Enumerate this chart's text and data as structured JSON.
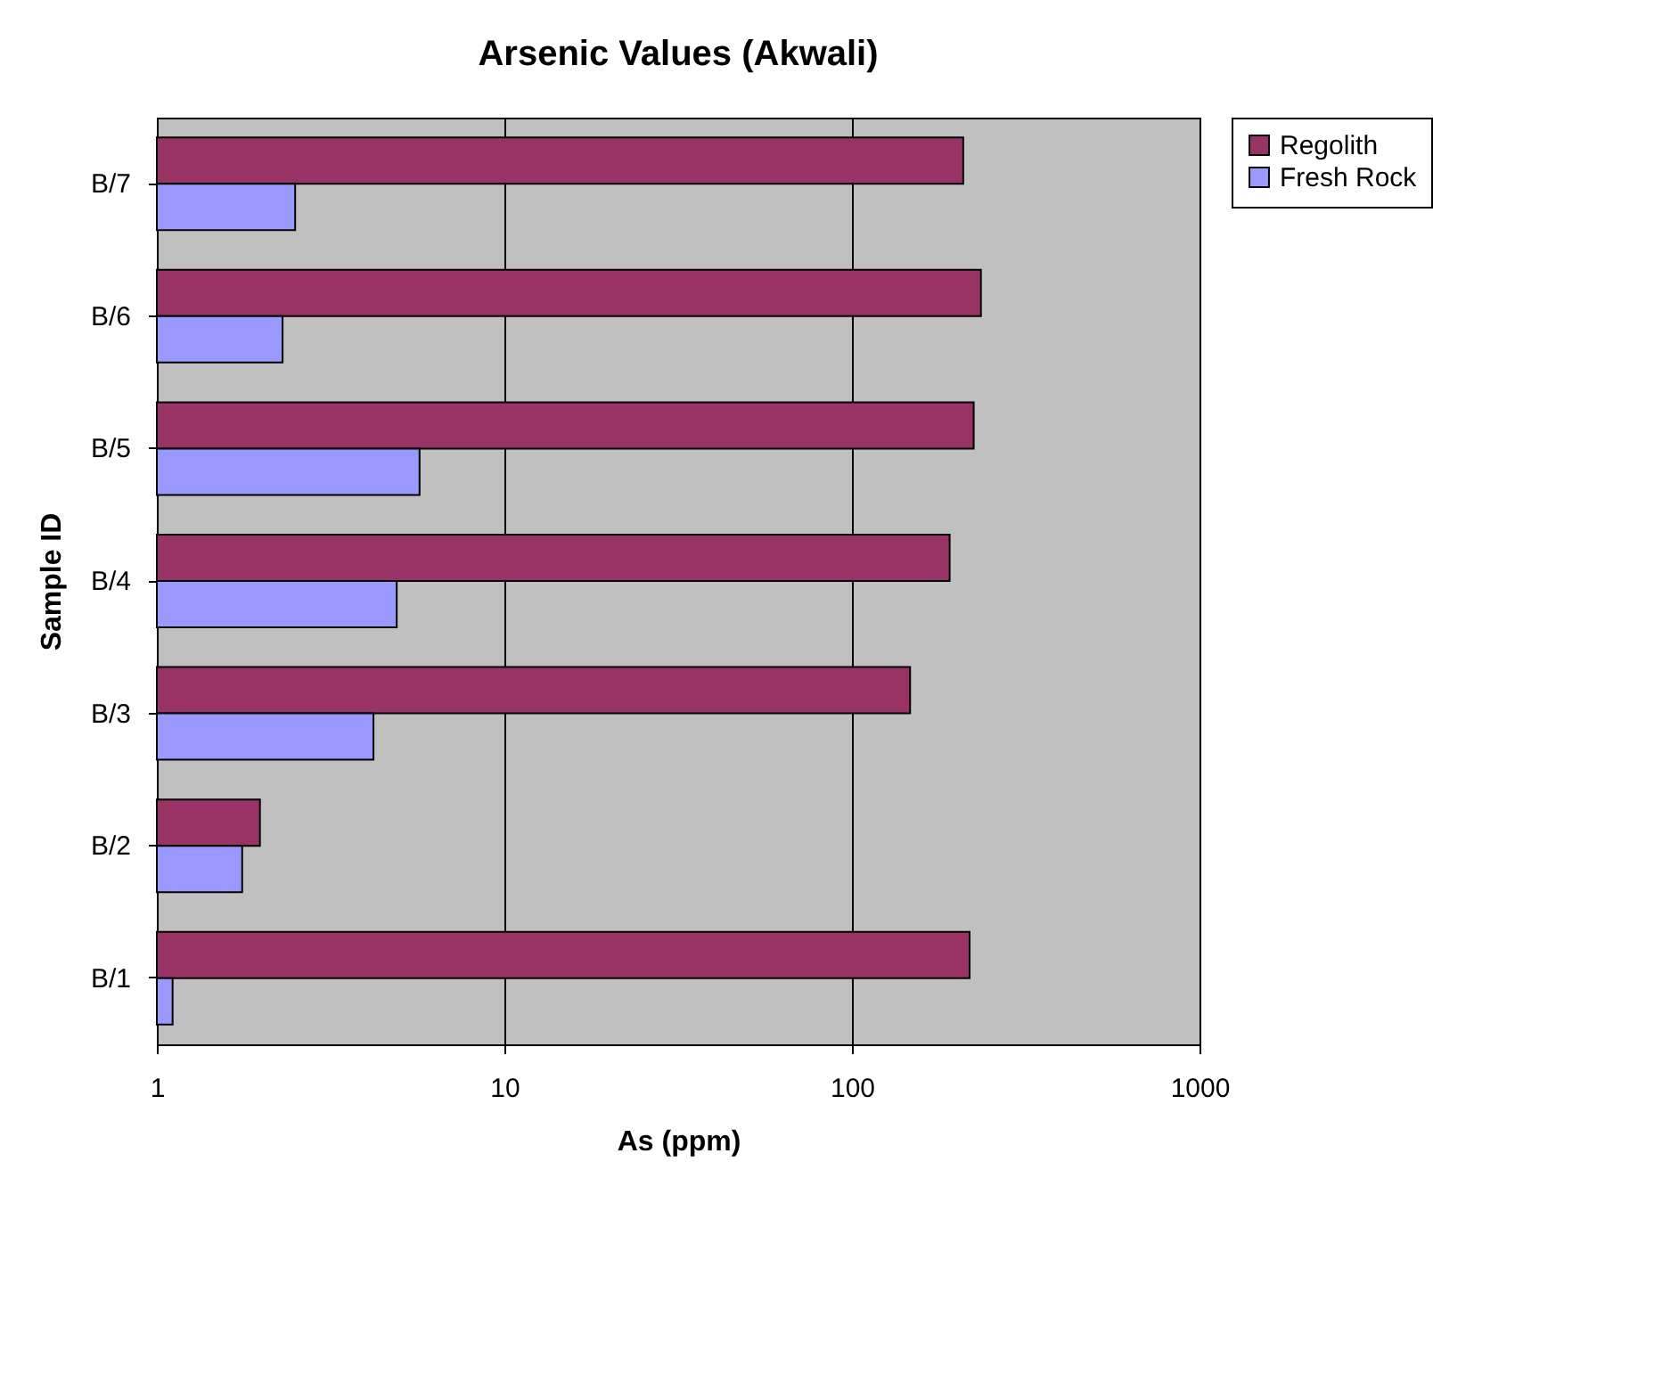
{
  "chart_data": {
    "type": "bar",
    "orientation": "horizontal",
    "title": "Arsenic Values (Akwali)",
    "xlabel": "As (ppm)",
    "ylabel": "Sample ID",
    "categories": [
      "B/7",
      "B/6",
      "B/5",
      "B/4",
      "B/3",
      "B/2",
      "B/1"
    ],
    "series": [
      {
        "name": "Regolith",
        "color": "#993366",
        "values": [
          209,
          235,
          224,
          191,
          147,
          1.98,
          218
        ]
      },
      {
        "name": "Fresh Rock",
        "color": "#9999ff",
        "values": [
          2.5,
          2.3,
          5.7,
          4.9,
          4.2,
          1.76,
          1.11
        ]
      }
    ],
    "log": "x",
    "xlim": [
      1,
      1000
    ],
    "xticks": [
      1,
      10,
      100,
      1000
    ],
    "grid": "x",
    "legend": "right"
  }
}
